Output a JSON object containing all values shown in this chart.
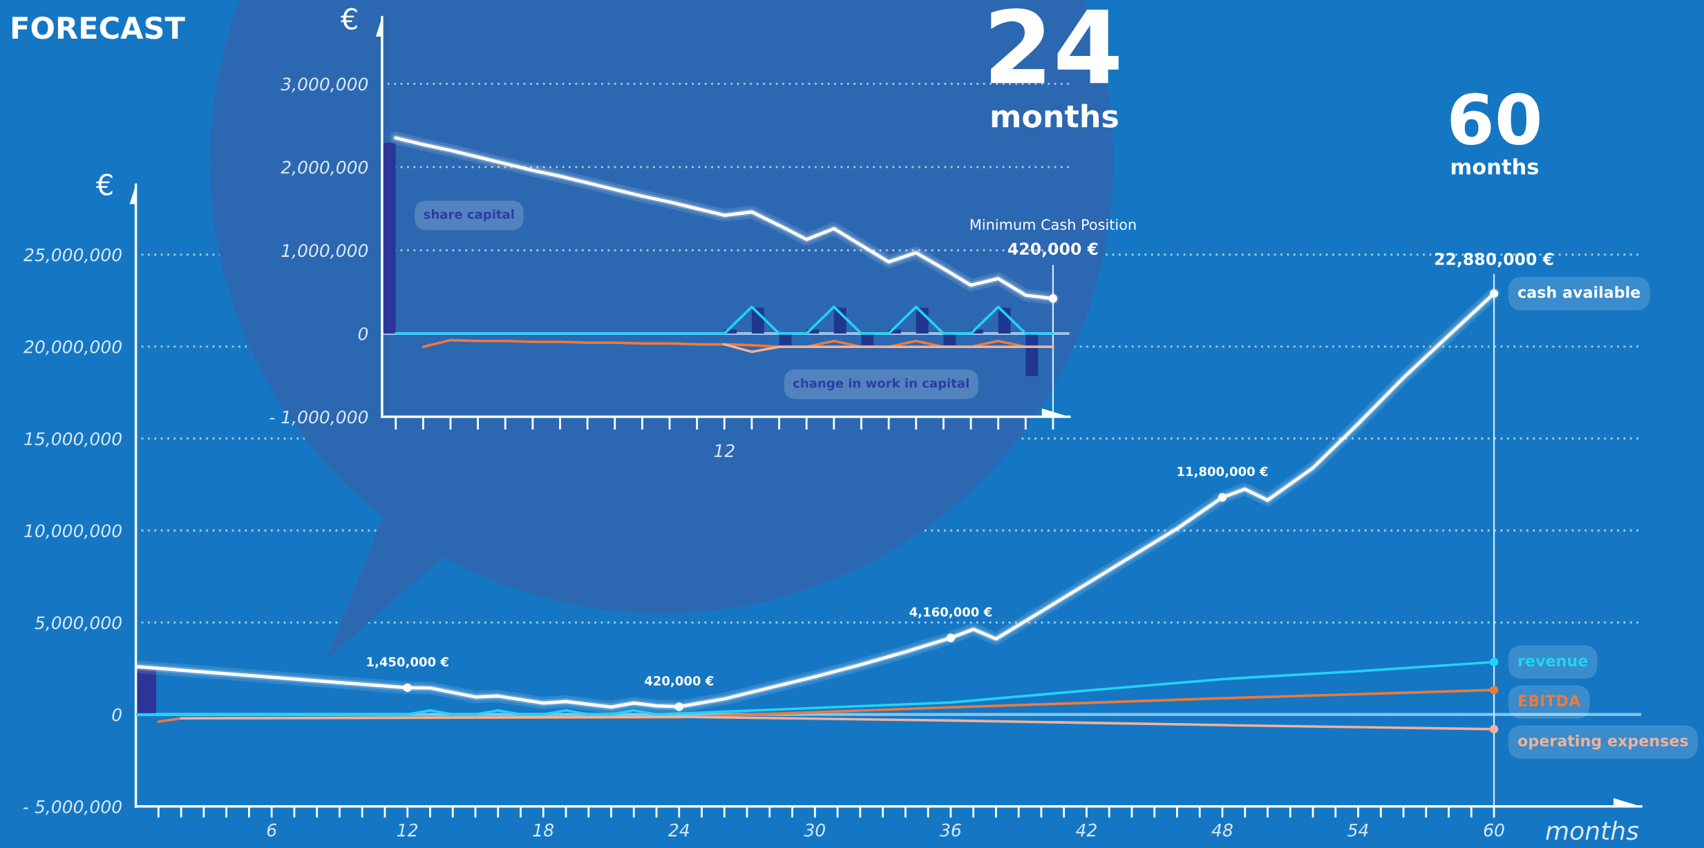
{
  "chart_data": [
    {
      "type": "line",
      "title": "FORECAST",
      "xlabel": "months",
      "ylabel": "€",
      "annotations": [
        "60",
        "months"
      ],
      "xlim": [
        0,
        66.5
      ],
      "ylim": [
        -5000000,
        28800000
      ],
      "xticks": [
        {
          "value": 1,
          "label": null
        },
        {
          "value": 2,
          "label": null
        },
        {
          "value": 3,
          "label": null
        },
        {
          "value": 4,
          "label": null
        },
        {
          "value": 5,
          "label": null
        },
        6,
        {
          "value": 7,
          "label": null
        },
        {
          "value": 8,
          "label": null
        },
        {
          "value": 9,
          "label": null
        },
        {
          "value": 10,
          "label": null
        },
        {
          "value": 11,
          "label": null
        },
        12,
        {
          "value": 13,
          "label": null
        },
        {
          "value": 14,
          "label": null
        },
        {
          "value": 15,
          "label": null
        },
        {
          "value": 16,
          "label": null
        },
        {
          "value": 17,
          "label": null
        },
        18,
        {
          "value": 19,
          "label": null
        },
        {
          "value": 20,
          "label": null
        },
        {
          "value": 21,
          "label": null
        },
        {
          "value": 22,
          "label": null
        },
        {
          "value": 23,
          "label": null
        },
        24,
        {
          "value": 25,
          "label": null
        },
        {
          "value": 26,
          "label": null
        },
        {
          "value": 27,
          "label": null
        },
        {
          "value": 28,
          "label": null
        },
        {
          "value": 29,
          "label": null
        },
        30,
        {
          "value": 31,
          "label": null
        },
        {
          "value": 32,
          "label": null
        },
        {
          "value": 33,
          "label": null
        },
        {
          "value": 34,
          "label": null
        },
        {
          "value": 35,
          "label": null
        },
        36,
        {
          "value": 37,
          "label": null
        },
        {
          "value": 38,
          "label": null
        },
        {
          "value": 39,
          "label": null
        },
        {
          "value": 40,
          "label": null
        },
        {
          "value": 41,
          "label": null
        },
        42,
        {
          "value": 43,
          "label": null
        },
        {
          "value": 44,
          "label": null
        },
        {
          "value": 45,
          "label": null
        },
        {
          "value": 46,
          "label": null
        },
        {
          "value": 47,
          "label": null
        },
        48,
        {
          "value": 49,
          "label": null
        },
        {
          "value": 50,
          "label": null
        },
        {
          "value": 51,
          "label": null
        },
        {
          "value": 52,
          "label": null
        },
        {
          "value": 53,
          "label": null
        },
        54,
        {
          "value": 55,
          "label": null
        },
        {
          "value": 56,
          "label": null
        },
        {
          "value": 57,
          "label": null
        },
        {
          "value": 58,
          "label": null
        },
        {
          "value": 59,
          "label": null
        },
        60
      ],
      "yticks": [
        {
          "value": -5000000,
          "label": "- 5,000,000"
        },
        0,
        {
          "value": 5000000,
          "label": "5,000,000"
        },
        {
          "value": 10000000,
          "label": "10,000,000"
        },
        {
          "value": 15000000,
          "label": "15,000,000"
        },
        {
          "value": 20000000,
          "label": "20,000,000"
        },
        {
          "value": 25000000,
          "label": "25,000,000"
        }
      ],
      "grid": "y",
      "ref_lines": [
        {
          "axis": "y",
          "value": 0,
          "color": "#86c6ec"
        },
        {
          "axis": "x",
          "value": 60,
          "color": "#d9e6f4"
        }
      ],
      "series": [
        {
          "type": "bar",
          "color": "#2b3597",
          "x": [
            0.45
          ],
          "values": [
            2500000
          ]
        },
        {
          "name": "cash available",
          "color": "#ffffff",
          "x": [
            0,
            12,
            13,
            15,
            16,
            18,
            19,
            21,
            22,
            23,
            24,
            26,
            28,
            30,
            32,
            34,
            36,
            37,
            38,
            40,
            42,
            44,
            46,
            48,
            49,
            50,
            52,
            54,
            56,
            58,
            60
          ],
          "values": [
            2600000,
            1450000,
            1440000,
            950000,
            1000000,
            620000,
            700000,
            400000,
            620000,
            470000,
            420000,
            850000,
            1450000,
            2050000,
            2700000,
            3400000,
            4160000,
            4630000,
            4110000,
            5600000,
            7100000,
            8600000,
            10100000,
            11800000,
            12250000,
            11650000,
            13400000,
            15800000,
            18300000,
            20600000,
            22880000
          ]
        },
        {
          "name": "revenue",
          "color": "#22d3f5",
          "x": [
            0,
            12,
            13,
            14,
            15,
            16,
            17,
            18,
            19,
            20,
            21,
            22,
            23,
            24,
            30,
            36,
            42,
            48,
            54,
            60
          ],
          "values": [
            0,
            0,
            220000,
            0,
            0,
            220000,
            0,
            0,
            220000,
            0,
            0,
            220000,
            0,
            50000,
            350000,
            650000,
            1300000,
            1920000,
            2350000,
            2850000
          ]
        },
        {
          "name": "EBITDA",
          "color": "#ee7a3a",
          "x": [
            1,
            2,
            24,
            30,
            36,
            42,
            48,
            54,
            60
          ],
          "values": [
            -390000,
            -210000,
            -150000,
            120000,
            390000,
            630000,
            880000,
            1100000,
            1330000
          ]
        },
        {
          "name": "operating expenses",
          "color": "#f0b29a",
          "x": [
            2,
            24,
            36,
            48,
            60
          ],
          "values": [
            -210000,
            -130000,
            -330000,
            -580000,
            -800000
          ]
        },
        {
          "type": "scatter",
          "marker": "circle",
          "color": "#ffffff",
          "x": [
            12,
            24,
            36,
            48,
            60
          ],
          "values": [
            1450000,
            420000,
            4160000,
            11800000,
            22880000
          ],
          "value_labels": [
            "1,450,000 €",
            "420,000 €",
            "4,160,000 €",
            "11,800,000 €",
            "22,880,000 €"
          ]
        },
        {
          "type": "scatter",
          "marker": "circle",
          "colors": [
            "#22d3f5",
            "#ee7a3a",
            "#f0b29a"
          ],
          "x": [
            60,
            60,
            60
          ],
          "values": [
            2850000,
            1330000,
            -800000
          ]
        }
      ]
    },
    {
      "type": "line",
      "ylabel": "€",
      "annotations": [
        "24",
        "months",
        "Minimum Cash Position"
      ],
      "categories": [
        null,
        null,
        null,
        null,
        null,
        null,
        null,
        null,
        null,
        null,
        null,
        null,
        "12",
        null,
        null,
        null,
        null,
        null,
        null,
        null,
        null,
        null,
        null,
        null,
        null
      ],
      "ylim": [
        -1000000,
        3800000
      ],
      "yticks": [
        {
          "value": -1000000,
          "label": "- 1,000,000"
        },
        0,
        {
          "value": 1000000,
          "label": "1,000,000"
        },
        {
          "value": 2000000,
          "label": "2,000,000"
        },
        {
          "value": 3000000,
          "label": "3,000,000"
        }
      ],
      "grid": "y",
      "ref_lines": [
        {
          "axis": "y",
          "value": 0,
          "color": "#9ec3e8"
        }
      ],
      "series": [
        {
          "type": "bar",
          "name": "share capital",
          "color": "#2b3597",
          "values": [
            2290000,
            null,
            null,
            null,
            null,
            null,
            null,
            null,
            null,
            null,
            null,
            null,
            null,
            null,
            null,
            null,
            null,
            null,
            null,
            null,
            null,
            null,
            null,
            null,
            null
          ]
        },
        {
          "type": "bar",
          "name": "change in work in capital",
          "color": "#1f3791",
          "values": [
            null,
            null,
            null,
            null,
            null,
            null,
            null,
            null,
            null,
            null,
            null,
            null,
            50000,
            310000,
            -140000,
            50000,
            310000,
            -140000,
            50000,
            310000,
            -140000,
            50000,
            310000,
            -510000,
            null
          ]
        },
        {
          "color": "#ffffff",
          "values": [
            2350000,
            2270000,
            2200000,
            2120000,
            2040000,
            1960000,
            1890000,
            1810000,
            1730000,
            1650000,
            1580000,
            1500000,
            1420000,
            1460000,
            1300000,
            1130000,
            1260000,
            1060000,
            860000,
            970000,
            780000,
            580000,
            660000,
            460000,
            420000
          ]
        },
        {
          "color": "#22d3f5",
          "values": [
            0,
            0,
            0,
            0,
            0,
            0,
            0,
            0,
            0,
            0,
            0,
            0,
            0,
            320000,
            0,
            0,
            320000,
            0,
            0,
            320000,
            0,
            0,
            320000,
            0,
            0
          ]
        },
        {
          "color": "#ee7a3a",
          "values": [
            null,
            -160000,
            -80000,
            -90000,
            -90000,
            -100000,
            -100000,
            -110000,
            -110000,
            -120000,
            -120000,
            -130000,
            -130000,
            -140000,
            -160000,
            -160000,
            -90000,
            -160000,
            -160000,
            -90000,
            -160000,
            -160000,
            -90000,
            -160000,
            -160000
          ]
        },
        {
          "color": "#f0b29a",
          "values": [
            null,
            null,
            null,
            null,
            null,
            null,
            null,
            null,
            null,
            null,
            null,
            null,
            -130000,
            -220000,
            -160000,
            -160000,
            -160000,
            -160000,
            -160000,
            -160000,
            -160000,
            -160000,
            -160000,
            -160000,
            -160000
          ]
        },
        {
          "type": "scatter",
          "marker": "circle",
          "color": "#ffffff",
          "values": [
            null,
            null,
            null,
            null,
            null,
            null,
            null,
            null,
            null,
            null,
            null,
            null,
            null,
            null,
            null,
            null,
            null,
            null,
            null,
            null,
            null,
            null,
            null,
            null,
            420000
          ],
          "value_labels": [
            null,
            null,
            null,
            null,
            null,
            null,
            null,
            null,
            null,
            null,
            null,
            null,
            null,
            null,
            null,
            null,
            null,
            null,
            null,
            null,
            null,
            null,
            null,
            null,
            "420,000 €"
          ]
        }
      ]
    }
  ]
}
